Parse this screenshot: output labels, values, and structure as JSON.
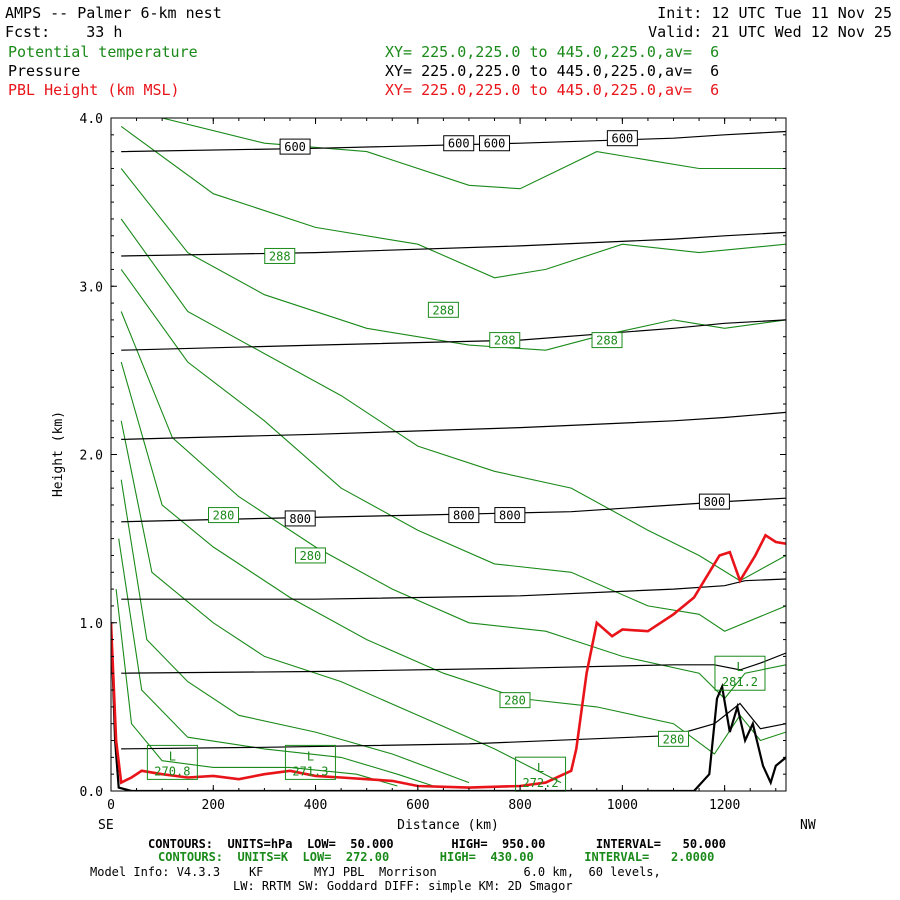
{
  "header": {
    "title": "AMPS -- Palmer 6-km nest",
    "fcst": "Fcst:    33 h",
    "init": "Init: 12 UTC Tue 11 Nov 25",
    "valid": "Valid: 21 UTC Wed 12 Nov 25",
    "fields": [
      {
        "label": "Potential temperature",
        "xy": "XY= 225.0,225.0 to 445.0,225.0,av=  6",
        "color": "#1a8a1a"
      },
      {
        "label": "Pressure",
        "xy": "XY= 225.0,225.0 to 445.0,225.0,av=  6",
        "color": "#000000"
      },
      {
        "label": "PBL Height (km MSL)",
        "xy": "XY= 225.0,225.0 to 445.0,225.0,av=  6",
        "color": "#e8141a"
      }
    ]
  },
  "footer": {
    "line1": "CONTOURS:  UNITS=hPa  LOW=  50.000        HIGH=  950.00       INTERVAL=   50.000",
    "line2": "CONTOURS:  UNITS=K  LOW=  272.00       HIGH=  430.00       INTERVAL=   2.0000",
    "line3": "Model Info: V4.3.3    KF       MYJ PBL  Morrison            6.0 km,  60 levels,",
    "line4": "LW: RRTM SW: Goddard DIFF: simple KM: 2D Smagor"
  },
  "chart_data": {
    "type": "line",
    "title": "AMPS -- Palmer 6-km nest",
    "xlabel": "Distance (km)",
    "ylabel": "Height (km)",
    "xlim": [
      0,
      1320
    ],
    "ylim": [
      0,
      4.0
    ],
    "x_ticks": [
      0,
      200,
      400,
      600,
      800,
      1000,
      1200
    ],
    "x_tick_labels": [
      "0",
      "200",
      "400",
      "600",
      "800",
      "1000",
      "1200"
    ],
    "y_ticks": [
      0,
      1.0,
      2.0,
      3.0,
      4.0
    ],
    "y_tick_labels": [
      "0.0",
      "1.0",
      "2.0",
      "3.0",
      "4.0"
    ],
    "x_end_labels": {
      "left": "SE",
      "right": "NW"
    },
    "colors": {
      "theta": "#1a8a1a",
      "pressure": "#000000",
      "pbl": "#e8141a"
    },
    "pressure_contours": [
      {
        "hpa": 950,
        "points": [
          [
            20,
            0.25
          ],
          [
            300,
            0.26
          ],
          [
            700,
            0.28
          ],
          [
            1100,
            0.33
          ],
          [
            1180,
            0.4
          ],
          [
            1230,
            0.52
          ],
          [
            1270,
            0.37
          ],
          [
            1320,
            0.4
          ]
        ]
      },
      {
        "hpa": 900,
        "points": [
          [
            20,
            0.7
          ],
          [
            400,
            0.71
          ],
          [
            800,
            0.73
          ],
          [
            1100,
            0.75
          ],
          [
            1180,
            0.75
          ],
          [
            1230,
            0.72
          ],
          [
            1270,
            0.76
          ],
          [
            1320,
            0.82
          ]
        ]
      },
      {
        "hpa": 850,
        "points": [
          [
            20,
            1.14
          ],
          [
            400,
            1.14
          ],
          [
            800,
            1.16
          ],
          [
            1100,
            1.2
          ],
          [
            1200,
            1.22
          ],
          [
            1240,
            1.25
          ],
          [
            1320,
            1.26
          ]
        ]
      },
      {
        "hpa": 800,
        "points": [
          [
            20,
            1.6
          ],
          [
            300,
            1.62
          ],
          [
            600,
            1.64
          ],
          [
            900,
            1.66
          ],
          [
            1100,
            1.7
          ],
          [
            1200,
            1.72
          ],
          [
            1320,
            1.74
          ]
        ]
      },
      {
        "hpa": 750,
        "points": [
          [
            20,
            2.09
          ],
          [
            400,
            2.12
          ],
          [
            800,
            2.16
          ],
          [
            1100,
            2.2
          ],
          [
            1200,
            2.22
          ],
          [
            1320,
            2.25
          ]
        ]
      },
      {
        "hpa": 700,
        "points": [
          [
            20,
            2.62
          ],
          [
            400,
            2.65
          ],
          [
            800,
            2.68
          ],
          [
            1100,
            2.75
          ],
          [
            1200,
            2.78
          ],
          [
            1320,
            2.8
          ]
        ]
      },
      {
        "hpa": 650,
        "points": [
          [
            20,
            3.18
          ],
          [
            400,
            3.2
          ],
          [
            800,
            3.24
          ],
          [
            1100,
            3.28
          ],
          [
            1200,
            3.3
          ],
          [
            1320,
            3.32
          ]
        ]
      },
      {
        "hpa": 600,
        "points": [
          [
            20,
            3.8
          ],
          [
            400,
            3.82
          ],
          [
            800,
            3.85
          ],
          [
            1100,
            3.88
          ],
          [
            1200,
            3.9
          ],
          [
            1320,
            3.92
          ]
        ]
      }
    ],
    "theta_contours": [
      {
        "k": 272,
        "points": [
          [
            10,
            1.2
          ],
          [
            40,
            0.4
          ],
          [
            100,
            0.18
          ],
          [
            200,
            0.14
          ],
          [
            350,
            0.14
          ],
          [
            480,
            0.1
          ],
          [
            560,
            0.03
          ]
        ]
      },
      {
        "k": 274,
        "points": [
          [
            15,
            1.5
          ],
          [
            60,
            0.6
          ],
          [
            150,
            0.32
          ],
          [
            300,
            0.25
          ],
          [
            450,
            0.2
          ],
          [
            560,
            0.1
          ],
          [
            640,
            0.02
          ]
        ]
      },
      {
        "k": 276,
        "points": [
          [
            20,
            1.85
          ],
          [
            70,
            0.9
          ],
          [
            150,
            0.65
          ],
          [
            250,
            0.45
          ],
          [
            400,
            0.35
          ],
          [
            550,
            0.22
          ],
          [
            700,
            0.05
          ]
        ]
      },
      {
        "k": 278,
        "points": [
          [
            20,
            2.2
          ],
          [
            80,
            1.3
          ],
          [
            200,
            1.0
          ],
          [
            300,
            0.8
          ],
          [
            450,
            0.65
          ],
          [
            600,
            0.45
          ],
          [
            750,
            0.25
          ],
          [
            880,
            0.05
          ]
        ]
      },
      {
        "k": 280,
        "points": [
          [
            20,
            2.55
          ],
          [
            100,
            1.7
          ],
          [
            200,
            1.45
          ],
          [
            350,
            1.15
          ],
          [
            500,
            0.9
          ],
          [
            650,
            0.7
          ],
          [
            800,
            0.55
          ],
          [
            950,
            0.5
          ],
          [
            1100,
            0.4
          ],
          [
            1180,
            0.22
          ],
          [
            1230,
            0.45
          ],
          [
            1270,
            0.3
          ],
          [
            1320,
            0.35
          ]
        ]
      },
      {
        "k": 282,
        "points": [
          [
            20,
            2.85
          ],
          [
            120,
            2.1
          ],
          [
            250,
            1.75
          ],
          [
            400,
            1.45
          ],
          [
            550,
            1.2
          ],
          [
            700,
            1.0
          ],
          [
            850,
            0.95
          ],
          [
            1000,
            0.8
          ],
          [
            1150,
            0.7
          ],
          [
            1200,
            0.55
          ],
          [
            1240,
            0.7
          ],
          [
            1320,
            0.75
          ]
        ]
      },
      {
        "k": 284,
        "points": [
          [
            20,
            3.1
          ],
          [
            150,
            2.55
          ],
          [
            300,
            2.2
          ],
          [
            450,
            1.8
          ],
          [
            600,
            1.55
          ],
          [
            750,
            1.35
          ],
          [
            900,
            1.3
          ],
          [
            1050,
            1.1
          ],
          [
            1150,
            1.05
          ],
          [
            1200,
            0.95
          ],
          [
            1320,
            1.1
          ]
        ]
      },
      {
        "k": 286,
        "points": [
          [
            20,
            3.4
          ],
          [
            150,
            2.85
          ],
          [
            300,
            2.6
          ],
          [
            450,
            2.35
          ],
          [
            600,
            2.05
          ],
          [
            750,
            1.9
          ],
          [
            900,
            1.8
          ],
          [
            1050,
            1.55
          ],
          [
            1150,
            1.4
          ],
          [
            1230,
            1.25
          ],
          [
            1320,
            1.4
          ]
        ]
      },
      {
        "k": 288,
        "points": [
          [
            20,
            3.7
          ],
          [
            150,
            3.2
          ],
          [
            300,
            2.95
          ],
          [
            500,
            2.75
          ],
          [
            700,
            2.65
          ],
          [
            850,
            2.62
          ],
          [
            950,
            2.7
          ],
          [
            1100,
            2.8
          ],
          [
            1200,
            2.75
          ],
          [
            1320,
            2.8
          ]
        ]
      },
      {
        "k": 290,
        "points": [
          [
            20,
            3.95
          ],
          [
            200,
            3.55
          ],
          [
            400,
            3.35
          ],
          [
            600,
            3.25
          ],
          [
            750,
            3.05
          ],
          [
            850,
            3.1
          ],
          [
            1000,
            3.25
          ],
          [
            1150,
            3.2
          ],
          [
            1320,
            3.25
          ]
        ]
      },
      {
        "k": 292,
        "points": [
          [
            100,
            4.0
          ],
          [
            300,
            3.85
          ],
          [
            500,
            3.8
          ],
          [
            700,
            3.6
          ],
          [
            800,
            3.58
          ],
          [
            950,
            3.8
          ],
          [
            1050,
            3.75
          ],
          [
            1150,
            3.7
          ],
          [
            1320,
            3.7
          ]
        ]
      }
    ],
    "pbl_height": {
      "label": "PBL Height (km MSL)",
      "points": [
        [
          0,
          1.0
        ],
        [
          10,
          0.3
        ],
        [
          20,
          0.05
        ],
        [
          40,
          0.08
        ],
        [
          60,
          0.12
        ],
        [
          100,
          0.1
        ],
        [
          150,
          0.08
        ],
        [
          200,
          0.09
        ],
        [
          250,
          0.07
        ],
        [
          300,
          0.1
        ],
        [
          350,
          0.12
        ],
        [
          400,
          0.09
        ],
        [
          450,
          0.08
        ],
        [
          500,
          0.07
        ],
        [
          550,
          0.06
        ],
        [
          600,
          0.03
        ],
        [
          700,
          0.02
        ],
        [
          800,
          0.03
        ],
        [
          850,
          0.05
        ],
        [
          900,
          0.12
        ],
        [
          910,
          0.25
        ],
        [
          930,
          0.7
        ],
        [
          950,
          1.0
        ],
        [
          980,
          0.92
        ],
        [
          1000,
          0.96
        ],
        [
          1050,
          0.95
        ],
        [
          1100,
          1.05
        ],
        [
          1140,
          1.15
        ],
        [
          1160,
          1.25
        ],
        [
          1190,
          1.4
        ],
        [
          1210,
          1.42
        ],
        [
          1230,
          1.25
        ],
        [
          1260,
          1.4
        ],
        [
          1280,
          1.52
        ],
        [
          1300,
          1.48
        ],
        [
          1320,
          1.47
        ]
      ]
    },
    "terrain": {
      "label": "Terrain",
      "points": [
        [
          0,
          1.0
        ],
        [
          8,
          0.3
        ],
        [
          15,
          0.02
        ],
        [
          40,
          0.0
        ],
        [
          1140,
          0.0
        ],
        [
          1170,
          0.1
        ],
        [
          1185,
          0.55
        ],
        [
          1195,
          0.62
        ],
        [
          1210,
          0.35
        ],
        [
          1225,
          0.5
        ],
        [
          1240,
          0.3
        ],
        [
          1255,
          0.4
        ],
        [
          1275,
          0.15
        ],
        [
          1290,
          0.05
        ],
        [
          1300,
          0.15
        ],
        [
          1320,
          0.2
        ]
      ]
    },
    "contour_labels": [
      {
        "text": "600",
        "x": 360,
        "y": 3.83,
        "kind": "pressure"
      },
      {
        "text": "600",
        "x": 680,
        "y": 3.85,
        "kind": "pressure"
      },
      {
        "text": "600",
        "x": 750,
        "y": 3.85,
        "kind": "pressure"
      },
      {
        "text": "600",
        "x": 1000,
        "y": 3.88,
        "kind": "pressure"
      },
      {
        "text": "800",
        "x": 370,
        "y": 1.62,
        "kind": "pressure"
      },
      {
        "text": "800",
        "x": 690,
        "y": 1.64,
        "kind": "pressure"
      },
      {
        "text": "800",
        "x": 780,
        "y": 1.64,
        "kind": "pressure"
      },
      {
        "text": "800",
        "x": 1180,
        "y": 1.72,
        "kind": "pressure"
      },
      {
        "text": "288",
        "x": 330,
        "y": 3.18,
        "kind": "theta"
      },
      {
        "text": "288",
        "x": 650,
        "y": 2.86,
        "kind": "theta"
      },
      {
        "text": "288",
        "x": 770,
        "y": 2.68,
        "kind": "theta"
      },
      {
        "text": "288",
        "x": 970,
        "y": 2.68,
        "kind": "theta"
      },
      {
        "text": "280",
        "x": 220,
        "y": 1.64,
        "kind": "theta"
      },
      {
        "text": "280",
        "x": 390,
        "y": 1.4,
        "kind": "theta"
      },
      {
        "text": "280",
        "x": 790,
        "y": 0.54,
        "kind": "theta"
      },
      {
        "text": "280",
        "x": 1100,
        "y": 0.31,
        "kind": "theta"
      },
      {
        "text": "L",
        "x": 120,
        "y": 0.17,
        "kind": "low",
        "value": "270.8"
      },
      {
        "text": "L",
        "x": 390,
        "y": 0.17,
        "kind": "low",
        "value": "271.3"
      },
      {
        "text": "L",
        "x": 840,
        "y": 0.1,
        "kind": "low",
        "value": "272.2"
      },
      {
        "text": "L",
        "x": 1230,
        "y": 0.7,
        "kind": "low",
        "value": "281.2"
      }
    ]
  }
}
